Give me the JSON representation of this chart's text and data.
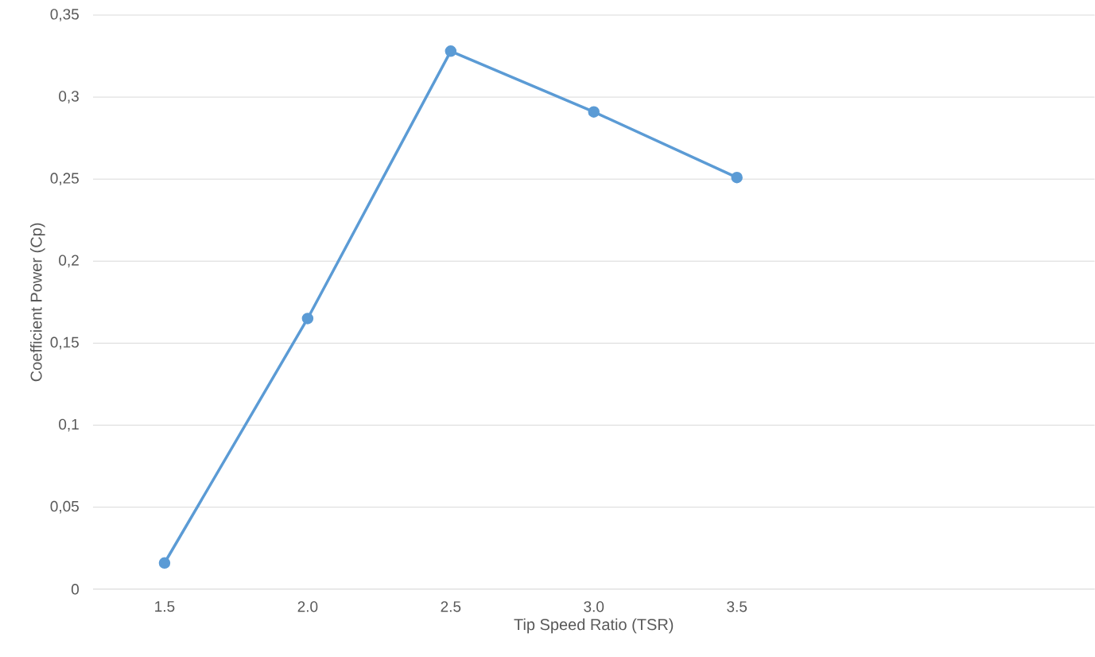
{
  "chart_data": {
    "type": "line",
    "xlabel": "Tip Speed Ratio (TSR)",
    "ylabel": "Coefficient Power (Cp)",
    "categories": [
      "1.5",
      "2.0",
      "2.5",
      "3.0",
      "3.5",
      null,
      null
    ],
    "series": [
      {
        "color": "#5b9bd5",
        "values": [
          0.016,
          0.165,
          0.328,
          0.291,
          0.251,
          null,
          null
        ]
      }
    ],
    "ylim": [
      0,
      0.35
    ],
    "yticks": [
      0,
      {
        "value": 0.05,
        "label": "0,05"
      },
      {
        "value": 0.1,
        "label": "0,1"
      },
      {
        "value": 0.15,
        "label": "0,15"
      },
      {
        "value": 0.2,
        "label": "0,2"
      },
      {
        "value": 0.25,
        "label": "0,25"
      },
      {
        "value": 0.3,
        "label": "0,3"
      },
      {
        "value": 0.35,
        "label": "0,35"
      }
    ],
    "grid": "y",
    "marker": "circle",
    "line_style": "solid"
  }
}
